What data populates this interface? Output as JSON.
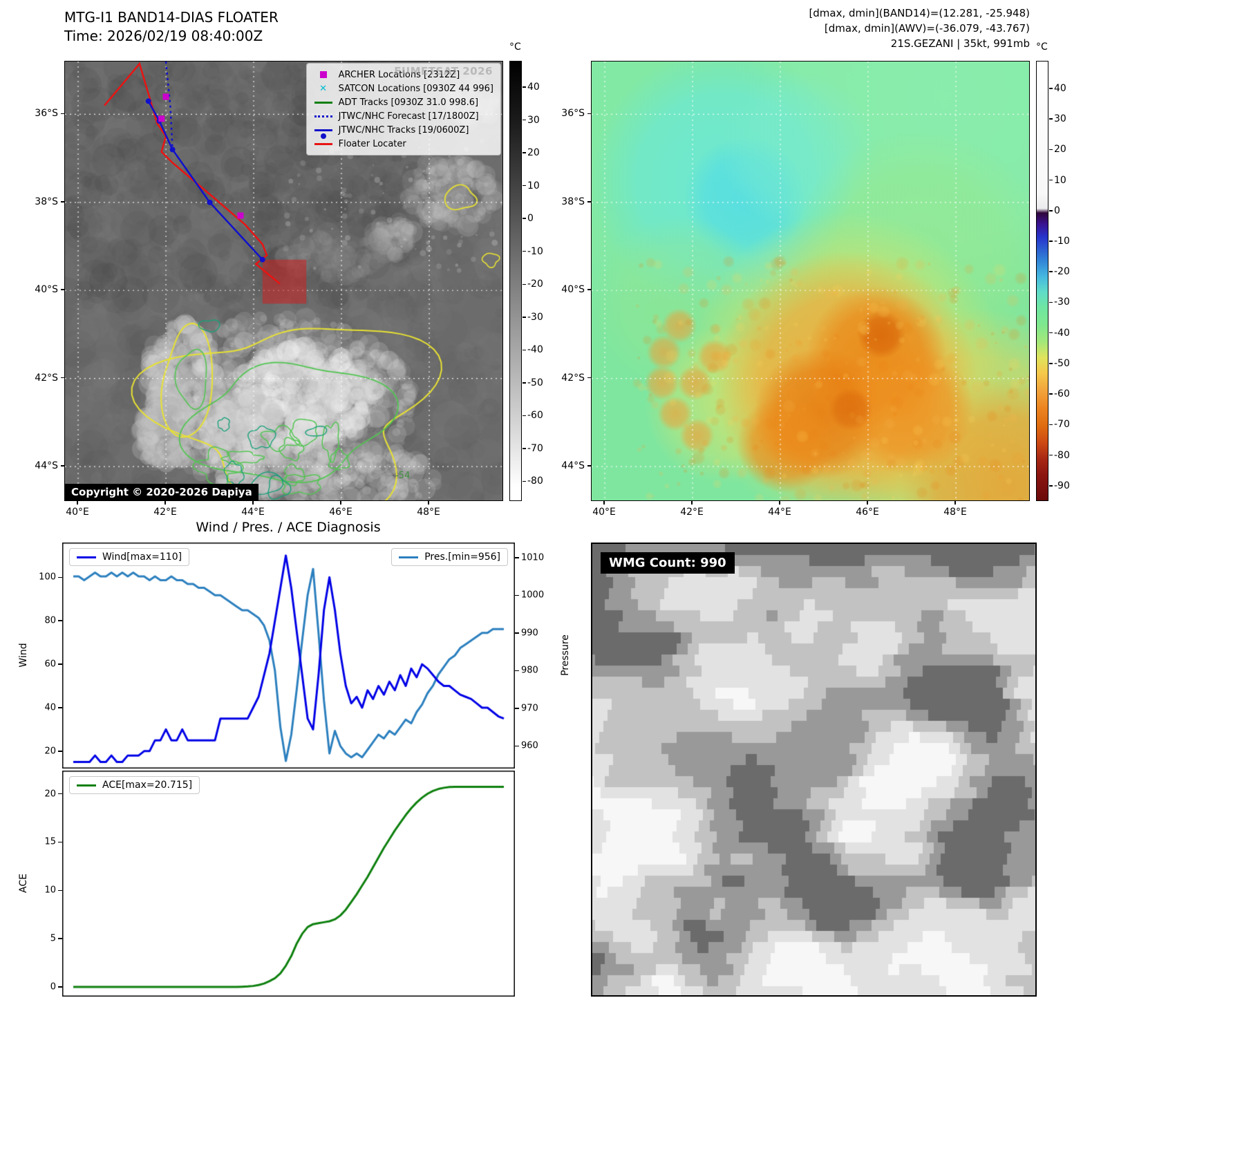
{
  "header": {
    "band14_title": "MTG-I1 BAND14-DIAS FLOATER",
    "band14_time": "Time: 2026/02/19 08:40:00Z",
    "awv_line1": "[dmax, dmin](BAND14)=(12.281, -25.948)",
    "awv_line2": "[dmax, dmin](AWV)=(-36.079, -43.767)",
    "awv_line3": "21S.GEZANI | 35kt, 991mb"
  },
  "band14_map": {
    "watermark": "EUMETSAT 2026",
    "copyright": "Copyright © 2020-2026 Dapiya",
    "contour_label": "-54",
    "x_ticks": [
      "40°E",
      "42°E",
      "44°E",
      "46°E",
      "48°E"
    ],
    "y_ticks": [
      "36°S",
      "38°S",
      "40°S",
      "42°S",
      "44°S"
    ],
    "geo": {
      "lon_range": [
        39.7,
        49.7
      ],
      "lat_range": [
        34.8,
        44.8
      ],
      "grid_lons": [
        40,
        42,
        44,
        46,
        48
      ],
      "grid_lats": [
        36,
        38,
        40,
        42,
        44
      ]
    },
    "colorbar": {
      "unit": "°C",
      "vmax": 48,
      "vmin": -86,
      "ticks": [
        40,
        30,
        20,
        10,
        0,
        -10,
        -20,
        -30,
        -40,
        -50,
        -60,
        -70,
        -80
      ],
      "stops": [
        [
          "#000000",
          0
        ],
        [
          "#1c1c1c",
          0.14
        ],
        [
          "#4f4f4f",
          0.33
        ],
        [
          "#7d7d7d",
          0.5
        ],
        [
          "#a8a8a8",
          0.66
        ],
        [
          "#d3d3d3",
          0.82
        ],
        [
          "#ffffff",
          0.97
        ],
        [
          "#ffffff",
          1
        ]
      ]
    },
    "legend": [
      {
        "label": "ARCHER Locations [2312Z]",
        "marker": "square",
        "color": "#cc00cc"
      },
      {
        "label": "SATCON Locations [0930Z 44 996]",
        "marker": "x",
        "color": "#00bcd0"
      },
      {
        "label": "ADT Tracks [0930Z 31.0 998.6]",
        "marker": "line",
        "color": "#0c7f0c"
      },
      {
        "label": "JTWC/NHC Forecast [17/1800Z]",
        "marker": "dotted",
        "color": "#1111cc"
      },
      {
        "label": "JTWC/NHC Tracks [19/0600Z]",
        "marker": "line-dot",
        "color": "#1111cc"
      },
      {
        "label": "Floater Locater",
        "marker": "line",
        "color": "#e81414"
      }
    ],
    "tracks": {
      "floater_color": "#e81414",
      "jtwc_color": "#1111cc",
      "archer_color": "#cc00cc",
      "floater": [
        [
          40.6,
          35.8
        ],
        [
          41.4,
          34.85
        ],
        [
          41.8,
          36.2
        ],
        [
          42.0,
          36.5
        ],
        [
          41.9,
          36.85
        ],
        [
          42.15,
          37.1
        ],
        [
          43.1,
          37.9
        ],
        [
          43.8,
          38.5
        ],
        [
          44.2,
          38.95
        ],
        [
          44.3,
          39.2
        ],
        [
          44.05,
          39.4
        ],
        [
          44.6,
          39.85
        ]
      ],
      "jtwc": [
        [
          41.6,
          35.7
        ],
        [
          41.85,
          36.15
        ],
        [
          42.15,
          36.8
        ],
        [
          43.0,
          38.0
        ],
        [
          44.2,
          39.3
        ]
      ],
      "forecast": [
        [
          42.0,
          34.8
        ],
        [
          42.1,
          35.8
        ],
        [
          42.15,
          36.8
        ]
      ],
      "archer_points": [
        [
          42.0,
          35.6
        ],
        [
          41.9,
          36.1
        ],
        [
          43.7,
          38.3
        ]
      ],
      "alert_box": {
        "lon": [
          44.2,
          45.2
        ],
        "lat": [
          39.3,
          40.3
        ]
      }
    }
  },
  "awv_map": {
    "x_ticks": [
      "40°E",
      "42°E",
      "44°E",
      "46°E",
      "48°E"
    ],
    "y_ticks": [
      "36°S",
      "38°S",
      "40°S",
      "42°S",
      "44°S"
    ],
    "colorbar": {
      "unit": "°C",
      "vmax": 49,
      "vmin": -95,
      "ticks": [
        40,
        30,
        20,
        10,
        0,
        -10,
        -20,
        -30,
        -40,
        -50,
        -60,
        -70,
        -80,
        -90
      ],
      "stops": [
        [
          "#ffffff",
          0
        ],
        [
          "#f8f8f8",
          0.3
        ],
        [
          "#ebebed",
          0.335
        ],
        [
          "#30063a",
          0.345
        ],
        [
          "#3a1290",
          0.37
        ],
        [
          "#2734cc",
          0.4
        ],
        [
          "#2f7fd6",
          0.45
        ],
        [
          "#45b8e0",
          0.49
        ],
        [
          "#5fdcc8",
          0.525
        ],
        [
          "#6fe6a2",
          0.56
        ],
        [
          "#7fe88e",
          0.6
        ],
        [
          "#a5e87a",
          0.64
        ],
        [
          "#e0e45c",
          0.675
        ],
        [
          "#f5c94a",
          0.71
        ],
        [
          "#f2a43c",
          0.75
        ],
        [
          "#ec8420",
          0.79
        ],
        [
          "#e06c10",
          0.83
        ],
        [
          "#cc4814",
          0.87
        ],
        [
          "#a82814",
          0.905
        ],
        [
          "#8a1410",
          0.945
        ],
        [
          "#6a0a0a",
          1
        ]
      ]
    }
  },
  "diagnosis": {
    "title": "Wind / Pres. / ACE Diagnosis"
  },
  "wmg": {
    "label": "WMG Count: 990"
  },
  "chart_data": [
    {
      "type": "line",
      "title": "Wind / Pres. / ACE Diagnosis",
      "ylabel_left": "Wind",
      "ylabel_right": "Pressure",
      "legend": [
        "Wind[max=110]",
        "Pres.[min=956]"
      ],
      "y_ticks_left": [
        20,
        40,
        60,
        80,
        100
      ],
      "y_ticks_right": [
        960,
        970,
        980,
        990,
        1000,
        1010
      ],
      "ylim_left": [
        12,
        116
      ],
      "ylim_right": [
        954,
        1014
      ],
      "series": [
        {
          "name": "Wind",
          "axis": "left",
          "color": "#0000e6",
          "values": [
            15,
            15,
            15,
            15,
            18,
            15,
            15,
            18,
            15,
            15,
            18,
            18,
            18,
            20,
            20,
            25,
            25,
            30,
            25,
            25,
            30,
            25,
            25,
            25,
            25,
            25,
            25,
            35,
            35,
            35,
            35,
            35,
            35,
            40,
            45,
            55,
            65,
            80,
            95,
            110,
            95,
            75,
            55,
            35,
            30,
            55,
            85,
            100,
            85,
            65,
            50,
            42,
            45,
            40,
            48,
            44,
            50,
            46,
            52,
            48,
            55,
            50,
            58,
            54,
            60,
            58,
            55,
            52,
            50,
            50,
            48,
            46,
            45,
            44,
            42,
            40,
            40,
            38,
            36,
            35
          ]
        },
        {
          "name": "Pres.",
          "axis": "right",
          "color": "#2b7fbe",
          "values": [
            1005,
            1005,
            1004,
            1005,
            1006,
            1005,
            1005,
            1006,
            1005,
            1006,
            1005,
            1006,
            1005,
            1005,
            1004,
            1005,
            1004,
            1004,
            1005,
            1004,
            1004,
            1003,
            1003,
            1002,
            1002,
            1001,
            1000,
            1000,
            999,
            998,
            997,
            996,
            996,
            995,
            994,
            992,
            988,
            980,
            965,
            956,
            963,
            975,
            988,
            1000,
            1007,
            990,
            972,
            958,
            964,
            960,
            958,
            957,
            958,
            957,
            959,
            961,
            963,
            962,
            964,
            963,
            965,
            967,
            966,
            969,
            971,
            974,
            976,
            979,
            981,
            983,
            984,
            986,
            987,
            988,
            989,
            990,
            990,
            991,
            991,
            991
          ]
        }
      ]
    },
    {
      "type": "line",
      "ylabel": "ACE",
      "legend": [
        "ACE[max=20.715]"
      ],
      "y_ticks": [
        0,
        5,
        10,
        15,
        20
      ],
      "ylim": [
        -1,
        22.4
      ],
      "series": [
        {
          "name": "ACE",
          "color": "#0c7f0c",
          "values": [
            0,
            0,
            0,
            0,
            0,
            0,
            0,
            0,
            0,
            0,
            0,
            0,
            0,
            0,
            0,
            0,
            0,
            0,
            0,
            0,
            0,
            0,
            0,
            0,
            0,
            0,
            0,
            0,
            0,
            0,
            0,
            0.02,
            0.05,
            0.1,
            0.2,
            0.35,
            0.6,
            0.9,
            1.4,
            2.2,
            3.2,
            4.5,
            5.5,
            6.2,
            6.5,
            6.6,
            6.7,
            6.8,
            7.0,
            7.4,
            8.0,
            8.8,
            9.6,
            10.5,
            11.4,
            12.4,
            13.4,
            14.4,
            15.3,
            16.2,
            17.0,
            17.8,
            18.5,
            19.1,
            19.6,
            20.0,
            20.3,
            20.5,
            20.62,
            20.7,
            20.715,
            20.715,
            20.715,
            20.715,
            20.715,
            20.715,
            20.715,
            20.715,
            20.715,
            20.715
          ]
        }
      ]
    }
  ]
}
